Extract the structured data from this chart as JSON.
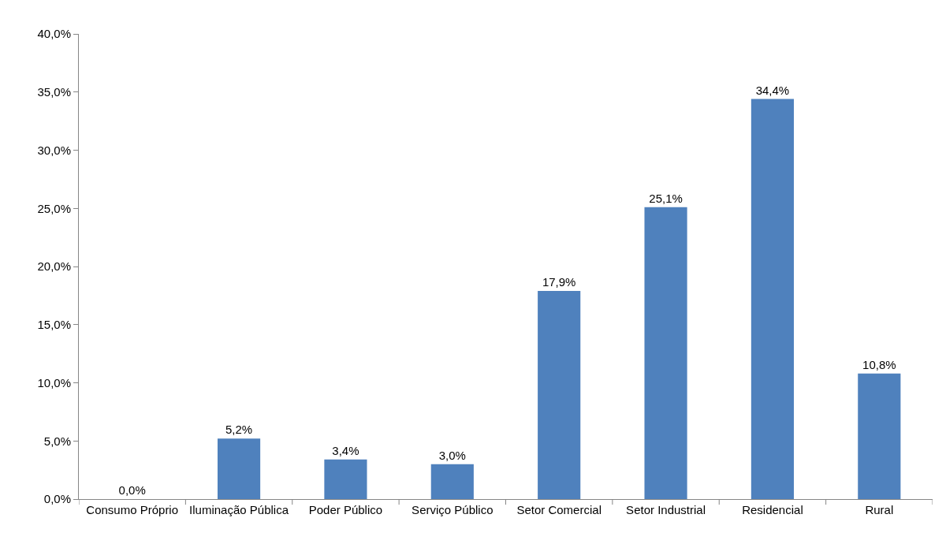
{
  "chart_data": {
    "type": "bar",
    "categories": [
      "Consumo Próprio",
      "Iluminação Pública",
      "Poder Público",
      "Serviço Público",
      "Setor Comercial",
      "Setor Industrial",
      "Residencial",
      "Rural"
    ],
    "values": [
      0.0,
      5.2,
      3.4,
      3.0,
      17.9,
      25.1,
      34.4,
      10.8
    ],
    "value_labels": [
      "0,0%",
      "5,2%",
      "3,4%",
      "3,0%",
      "17,9%",
      "25,1%",
      "34,4%",
      "10,8%"
    ],
    "color": "#4f81bd",
    "ylim": [
      0,
      40
    ],
    "yticks": [
      {
        "value": 0,
        "label": "0,0%"
      },
      {
        "value": 5,
        "label": "5,0%"
      },
      {
        "value": 10,
        "label": "10,0%"
      },
      {
        "value": 15,
        "label": "15,0%"
      },
      {
        "value": 20,
        "label": "20,0%"
      },
      {
        "value": 25,
        "label": "25,0%"
      },
      {
        "value": 30,
        "label": "30,0%"
      },
      {
        "value": 35,
        "label": "35,0%"
      },
      {
        "value": 40,
        "label": "40,0%"
      }
    ],
    "grid": false,
    "legend": false
  }
}
